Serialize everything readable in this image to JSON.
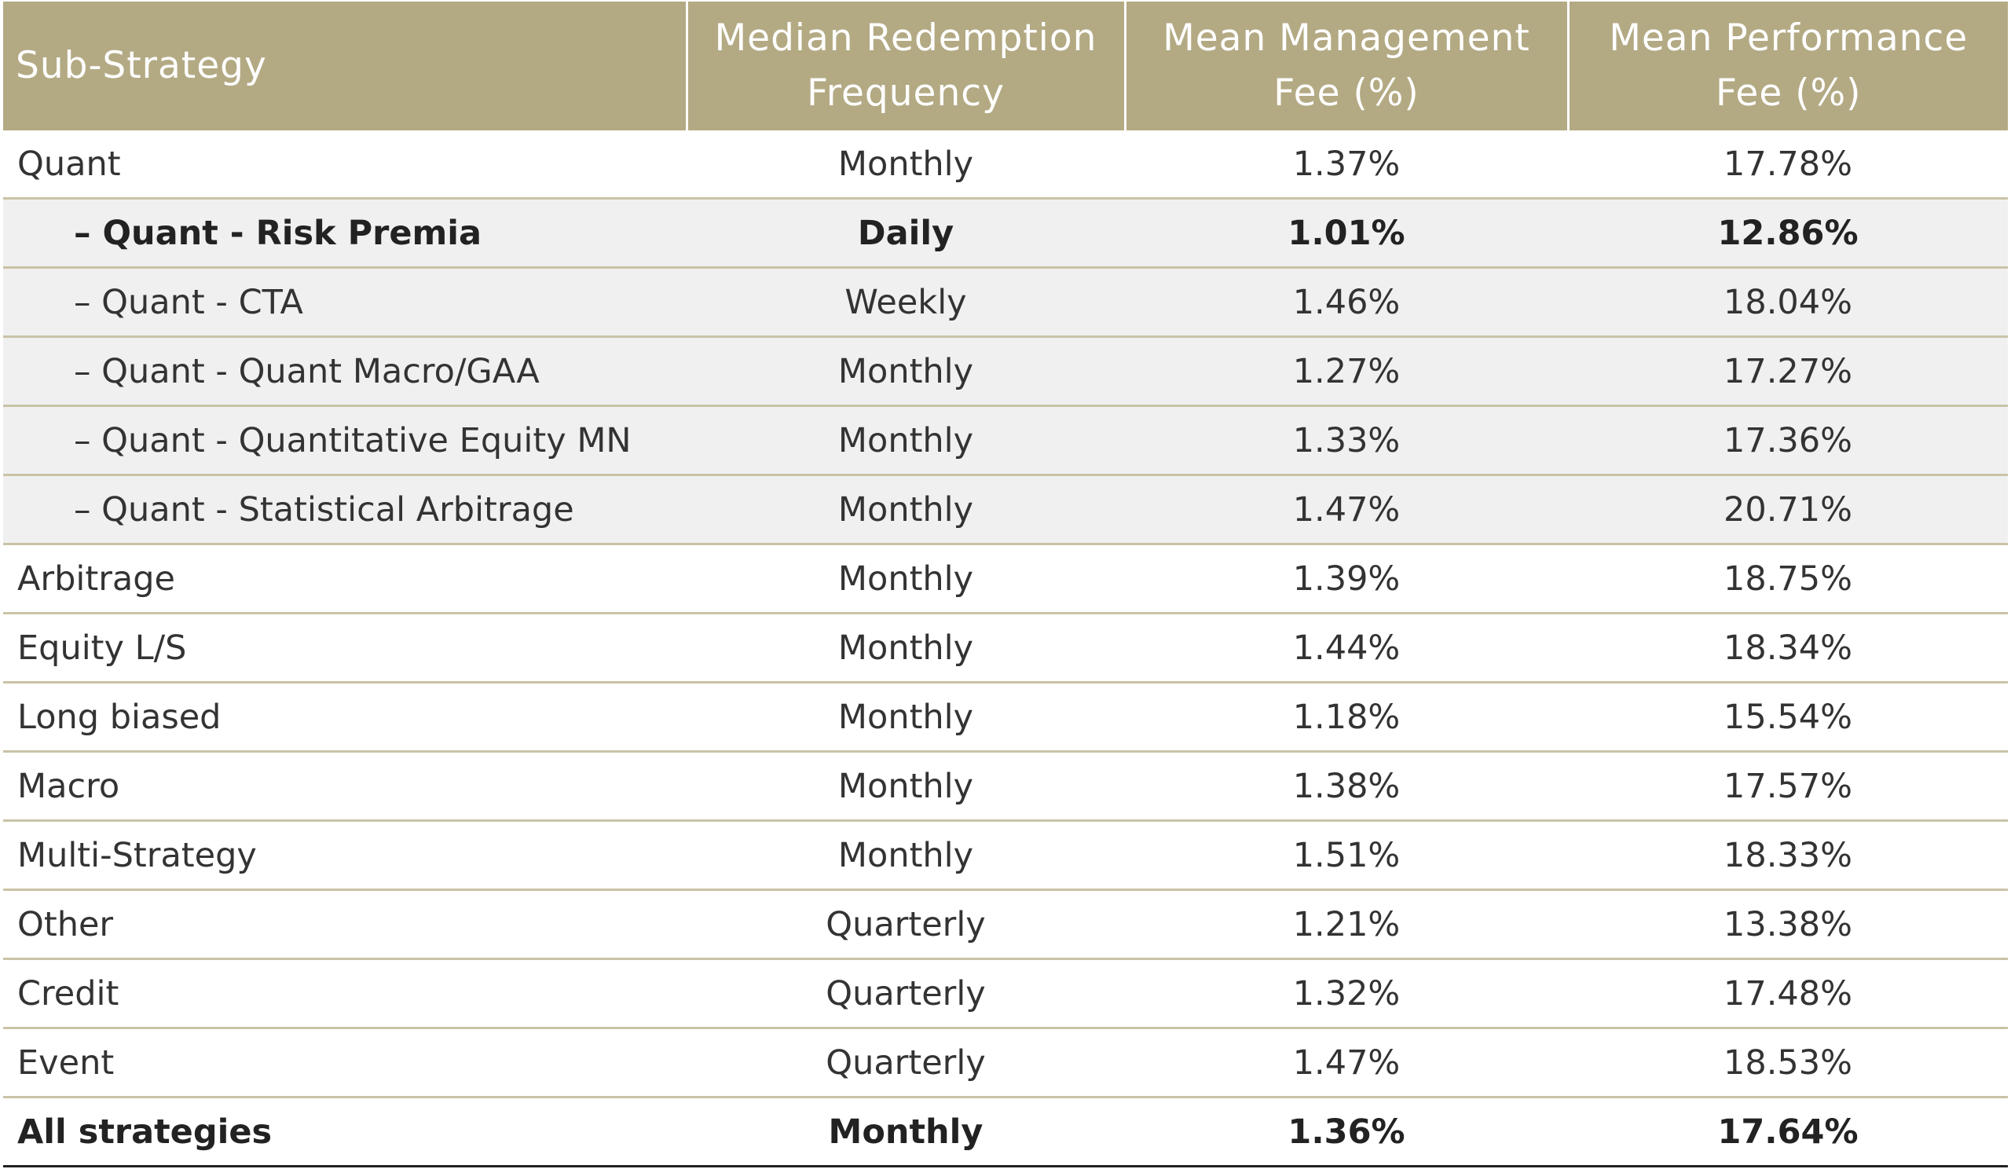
{
  "chart_data": {
    "type": "table",
    "columns": [
      "Sub-Strategy",
      "Median Redemption Frequency",
      "Mean Management Fee (%)",
      "Mean Performance Fee (%)"
    ],
    "header_lines": [
      [
        "Sub-Strategy"
      ],
      [
        "Median Redemption",
        "Frequency"
      ],
      [
        "Mean Management",
        "Fee (%)"
      ],
      [
        "Mean Performance",
        "Fee (%)"
      ]
    ],
    "rows": [
      {
        "name": "Quant",
        "frequency": "Monthly",
        "mgmt_fee": "1.37%",
        "perf_fee": "17.78%",
        "level": 0,
        "shaded": false,
        "bold": false,
        "total": false
      },
      {
        "name": "– Quant - Risk Premia",
        "frequency": "Daily",
        "mgmt_fee": "1.01%",
        "perf_fee": "12.86%",
        "level": 1,
        "shaded": true,
        "bold": true,
        "total": false
      },
      {
        "name": "– Quant - CTA",
        "frequency": "Weekly",
        "mgmt_fee": "1.46%",
        "perf_fee": "18.04%",
        "level": 1,
        "shaded": true,
        "bold": false,
        "total": false
      },
      {
        "name": "– Quant - Quant Macro/GAA",
        "frequency": "Monthly",
        "mgmt_fee": "1.27%",
        "perf_fee": "17.27%",
        "level": 1,
        "shaded": true,
        "bold": false,
        "total": false
      },
      {
        "name": "– Quant - Quantitative Equity MN",
        "frequency": "Monthly",
        "mgmt_fee": "1.33%",
        "perf_fee": "17.36%",
        "level": 1,
        "shaded": true,
        "bold": false,
        "total": false
      },
      {
        "name": "– Quant - Statistical Arbitrage",
        "frequency": "Monthly",
        "mgmt_fee": "1.47%",
        "perf_fee": "20.71%",
        "level": 1,
        "shaded": true,
        "bold": false,
        "total": false
      },
      {
        "name": "Arbitrage",
        "frequency": "Monthly",
        "mgmt_fee": "1.39%",
        "perf_fee": "18.75%",
        "level": 0,
        "shaded": false,
        "bold": false,
        "total": false
      },
      {
        "name": "Equity L/S",
        "frequency": "Monthly",
        "mgmt_fee": "1.44%",
        "perf_fee": "18.34%",
        "level": 0,
        "shaded": false,
        "bold": false,
        "total": false
      },
      {
        "name": "Long biased",
        "frequency": "Monthly",
        "mgmt_fee": "1.18%",
        "perf_fee": "15.54%",
        "level": 0,
        "shaded": false,
        "bold": false,
        "total": false
      },
      {
        "name": "Macro",
        "frequency": "Monthly",
        "mgmt_fee": "1.38%",
        "perf_fee": "17.57%",
        "level": 0,
        "shaded": false,
        "bold": false,
        "total": false
      },
      {
        "name": "Multi-Strategy",
        "frequency": "Monthly",
        "mgmt_fee": "1.51%",
        "perf_fee": "18.33%",
        "level": 0,
        "shaded": false,
        "bold": false,
        "total": false
      },
      {
        "name": "Other",
        "frequency": "Quarterly",
        "mgmt_fee": "1.21%",
        "perf_fee": "13.38%",
        "level": 0,
        "shaded": false,
        "bold": false,
        "total": false
      },
      {
        "name": "Credit",
        "frequency": "Quarterly",
        "mgmt_fee": "1.32%",
        "perf_fee": "17.48%",
        "level": 0,
        "shaded": false,
        "bold": false,
        "total": false
      },
      {
        "name": "Event",
        "frequency": "Quarterly",
        "mgmt_fee": "1.47%",
        "perf_fee": "18.53%",
        "level": 0,
        "shaded": false,
        "bold": false,
        "total": false
      },
      {
        "name": "All strategies",
        "frequency": "Monthly",
        "mgmt_fee": "1.36%",
        "perf_fee": "17.64%",
        "level": 0,
        "shaded": false,
        "bold": true,
        "total": true
      }
    ],
    "colors": {
      "header_background": "#b3aa84",
      "header_text": "#ffffff",
      "row_separator": "#c9c3a6",
      "shaded_row": "#f0f0f0",
      "total_rule": "#222222"
    }
  }
}
